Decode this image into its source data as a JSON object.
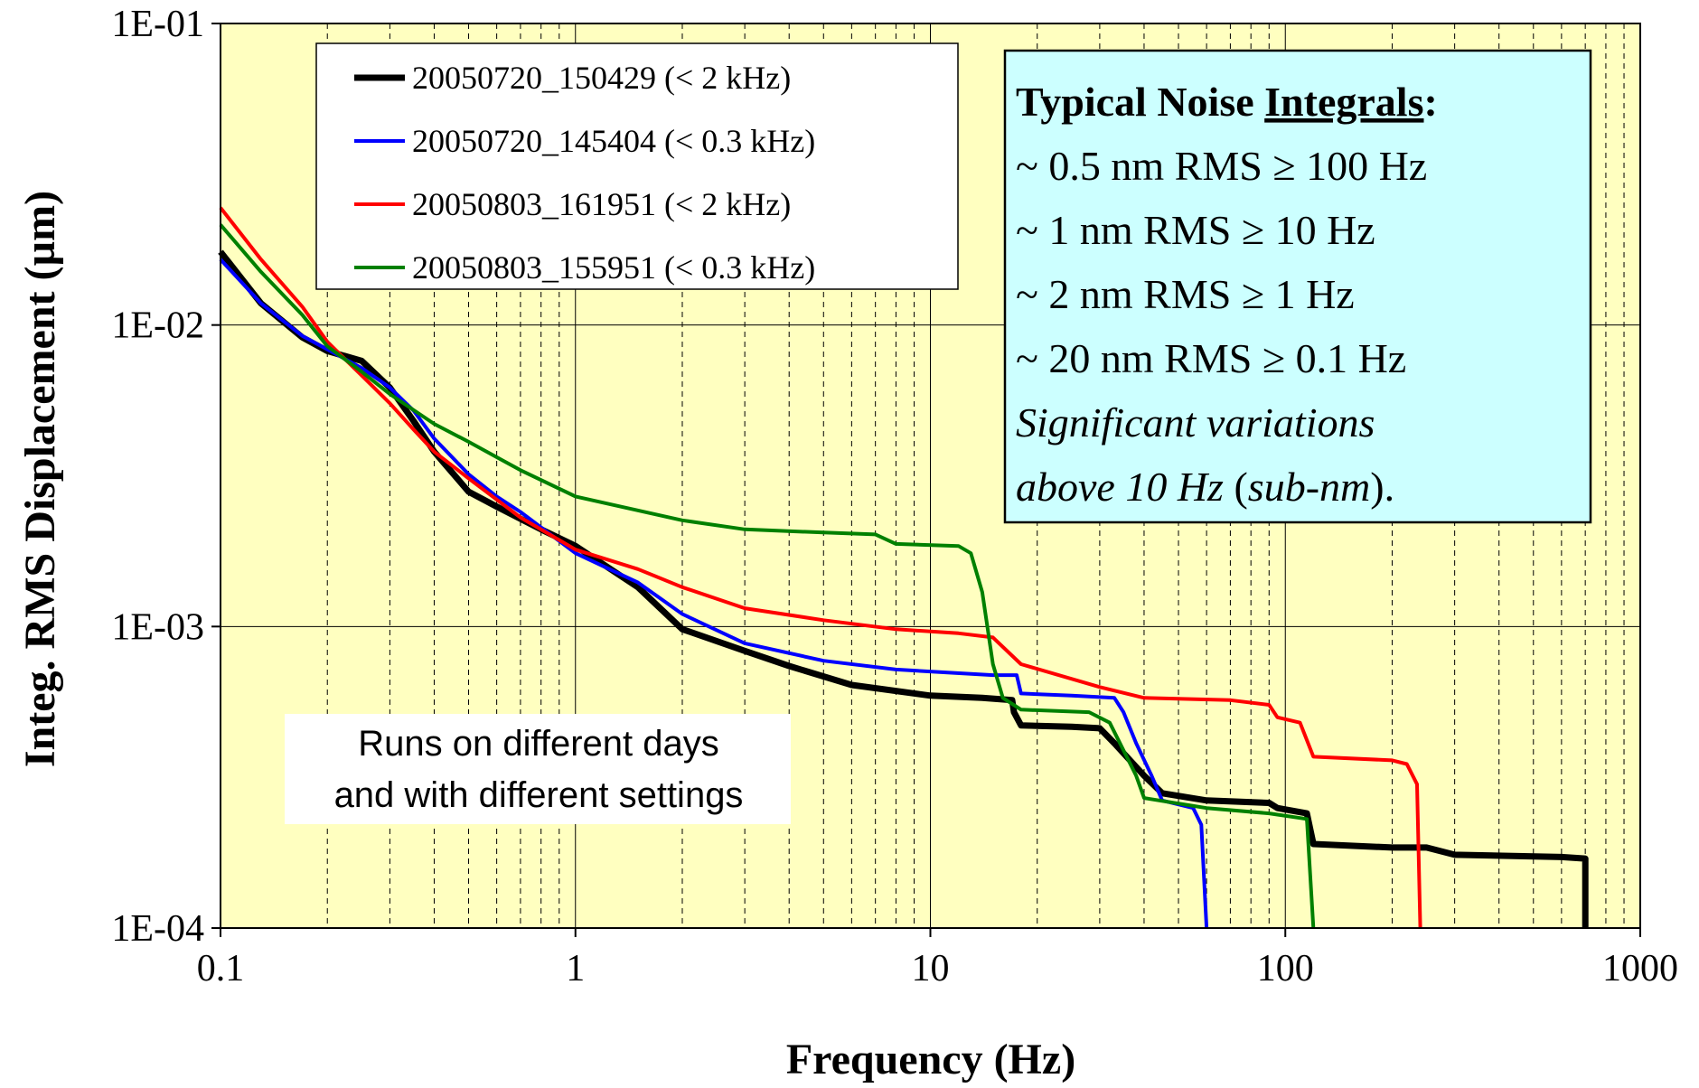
{
  "chart_data": {
    "type": "line",
    "xlabel": "Frequency (Hz)",
    "ylabel": "Integ. RMS Displacement (µm)",
    "x_scale": "log",
    "y_scale": "log",
    "xlim": [
      0.1,
      1000
    ],
    "ylim": [
      0.0001,
      0.1
    ],
    "x_tick_labels": [
      "0.1",
      "1",
      "10",
      "100",
      "1000"
    ],
    "y_tick_labels": [
      "1E-01",
      "1E-02",
      "1E-03",
      "1E-04"
    ],
    "grid": true,
    "legend_position": "top-left",
    "plot_background": "#ffffc0",
    "series": [
      {
        "name": "20050720_150429 (< 2 kHz)",
        "color": "#000000",
        "points": [
          [
            0.1,
            0.0175
          ],
          [
            0.13,
            0.0118
          ],
          [
            0.17,
            0.0091
          ],
          [
            0.2,
            0.0082
          ],
          [
            0.25,
            0.0076
          ],
          [
            0.3,
            0.0062
          ],
          [
            0.35,
            0.0048
          ],
          [
            0.4,
            0.0038
          ],
          [
            0.5,
            0.0028
          ],
          [
            0.6,
            0.0025
          ],
          [
            0.8,
            0.0021
          ],
          [
            1.0,
            0.00185
          ],
          [
            1.5,
            0.00135
          ],
          [
            2.0,
            0.00098
          ],
          [
            3.0,
            0.00083
          ],
          [
            4.0,
            0.00074
          ],
          [
            6.0,
            0.00064
          ],
          [
            10.0,
            0.00059
          ],
          [
            14.0,
            0.00058
          ],
          [
            17.0,
            0.00057
          ],
          [
            17.2,
            0.00052
          ],
          [
            18.0,
            0.00047
          ],
          [
            25.0,
            0.000465
          ],
          [
            30.0,
            0.00046
          ],
          [
            33.0,
            0.00041
          ],
          [
            40.0,
            0.00032
          ],
          [
            45.0,
            0.00028
          ],
          [
            60.0,
            0.000265
          ],
          [
            90.0,
            0.00026
          ],
          [
            95.0,
            0.00025
          ],
          [
            115.0,
            0.00024
          ],
          [
            120.0,
            0.00019
          ],
          [
            200.0,
            0.000185
          ],
          [
            250.0,
            0.000185
          ],
          [
            300.0,
            0.000175
          ],
          [
            600.0,
            0.000172
          ],
          [
            700.0,
            0.00017
          ],
          [
            700.0,
            0.0001
          ]
        ]
      },
      {
        "name": "20050720_145404 (< 0.3 kHz)",
        "color": "#0000ff",
        "points": [
          [
            0.1,
            0.0165
          ],
          [
            0.13,
            0.0118
          ],
          [
            0.17,
            0.0092
          ],
          [
            0.25,
            0.0072
          ],
          [
            0.3,
            0.0062
          ],
          [
            0.35,
            0.0052
          ],
          [
            0.4,
            0.0042
          ],
          [
            0.5,
            0.0032
          ],
          [
            0.6,
            0.0027
          ],
          [
            0.7,
            0.0024
          ],
          [
            1.0,
            0.00175
          ],
          [
            1.5,
            0.0014
          ],
          [
            2.0,
            0.0011
          ],
          [
            3.0,
            0.00088
          ],
          [
            5.0,
            0.00077
          ],
          [
            8.0,
            0.00072
          ],
          [
            15.0,
            0.00069
          ],
          [
            17.5,
            0.00069
          ],
          [
            18.0,
            0.0006
          ],
          [
            25.0,
            0.00059
          ],
          [
            33.0,
            0.00058
          ],
          [
            35.0,
            0.00052
          ],
          [
            38.0,
            0.00041
          ],
          [
            42.0,
            0.00032
          ],
          [
            45.0,
            0.000265
          ],
          [
            55.0,
            0.00025
          ],
          [
            58.0,
            0.00022
          ],
          [
            60.0,
            0.0001
          ]
        ]
      },
      {
        "name": "20050803_161951 (< 2 kHz)",
        "color": "#ff0000",
        "points": [
          [
            0.1,
            0.0245
          ],
          [
            0.13,
            0.0165
          ],
          [
            0.17,
            0.0115
          ],
          [
            0.2,
            0.0088
          ],
          [
            0.25,
            0.0068
          ],
          [
            0.3,
            0.0055
          ],
          [
            0.35,
            0.0045
          ],
          [
            0.4,
            0.0038
          ],
          [
            0.5,
            0.0031
          ],
          [
            0.7,
            0.0023
          ],
          [
            1.0,
            0.0018
          ],
          [
            1.5,
            0.00155
          ],
          [
            2.0,
            0.00135
          ],
          [
            3.0,
            0.00115
          ],
          [
            5.0,
            0.00105
          ],
          [
            8.0,
            0.00098
          ],
          [
            12.0,
            0.00095
          ],
          [
            15.0,
            0.00092
          ],
          [
            18.0,
            0.00075
          ],
          [
            30.0,
            0.00063
          ],
          [
            40.0,
            0.00058
          ],
          [
            70.0,
            0.00057
          ],
          [
            90.0,
            0.00055
          ],
          [
            95.0,
            0.0005
          ],
          [
            110.0,
            0.00048
          ],
          [
            120.0,
            0.00037
          ],
          [
            200.0,
            0.00036
          ],
          [
            220.0,
            0.00035
          ],
          [
            235.0,
            0.0003
          ],
          [
            240.0,
            0.0001
          ]
        ]
      },
      {
        "name": "20050803_155951 (< 0.3 kHz)",
        "color": "#008000",
        "points": [
          [
            0.1,
            0.0215
          ],
          [
            0.13,
            0.015
          ],
          [
            0.17,
            0.0108
          ],
          [
            0.2,
            0.0085
          ],
          [
            0.25,
            0.007
          ],
          [
            0.3,
            0.0059
          ],
          [
            0.4,
            0.0047
          ],
          [
            0.5,
            0.0041
          ],
          [
            0.7,
            0.0033
          ],
          [
            1.0,
            0.0027
          ],
          [
            2.0,
            0.00225
          ],
          [
            3.0,
            0.0021
          ],
          [
            5.0,
            0.00205
          ],
          [
            7.0,
            0.00202
          ],
          [
            8.0,
            0.00188
          ],
          [
            12.0,
            0.00185
          ],
          [
            13.0,
            0.00175
          ],
          [
            14.0,
            0.0013
          ],
          [
            15.0,
            0.00075
          ],
          [
            16.0,
            0.00058
          ],
          [
            18.0,
            0.00053
          ],
          [
            28.0,
            0.00052
          ],
          [
            32.0,
            0.00048
          ],
          [
            38.0,
            0.00032
          ],
          [
            40.0,
            0.00027
          ],
          [
            60.0,
            0.00025
          ],
          [
            90.0,
            0.00024
          ],
          [
            115.0,
            0.00023
          ],
          [
            120.0,
            0.0001
          ]
        ]
      }
    ],
    "annotations": {
      "info_box": {
        "title_prefix": "Typical Noise ",
        "title_underlined": "Integrals",
        "title_suffix": ":",
        "lines": [
          "~ 0.5 nm RMS ≥ 100 Hz",
          "~ 1 nm RMS ≥ 10 Hz",
          "~ 2 nm RMS ≥ 1 Hz",
          "~ 20 nm RMS ≥ 0.1 Hz"
        ],
        "italic_line_1": "Significant variations",
        "italic_line_2_a": "above 10 Hz",
        "italic_line_2_b": " (",
        "italic_line_2_c": "sub-nm",
        "italic_line_2_d": ").",
        "background": "#ccffff"
      },
      "note_lines": [
        "Runs on different days",
        "and with different settings"
      ]
    }
  }
}
